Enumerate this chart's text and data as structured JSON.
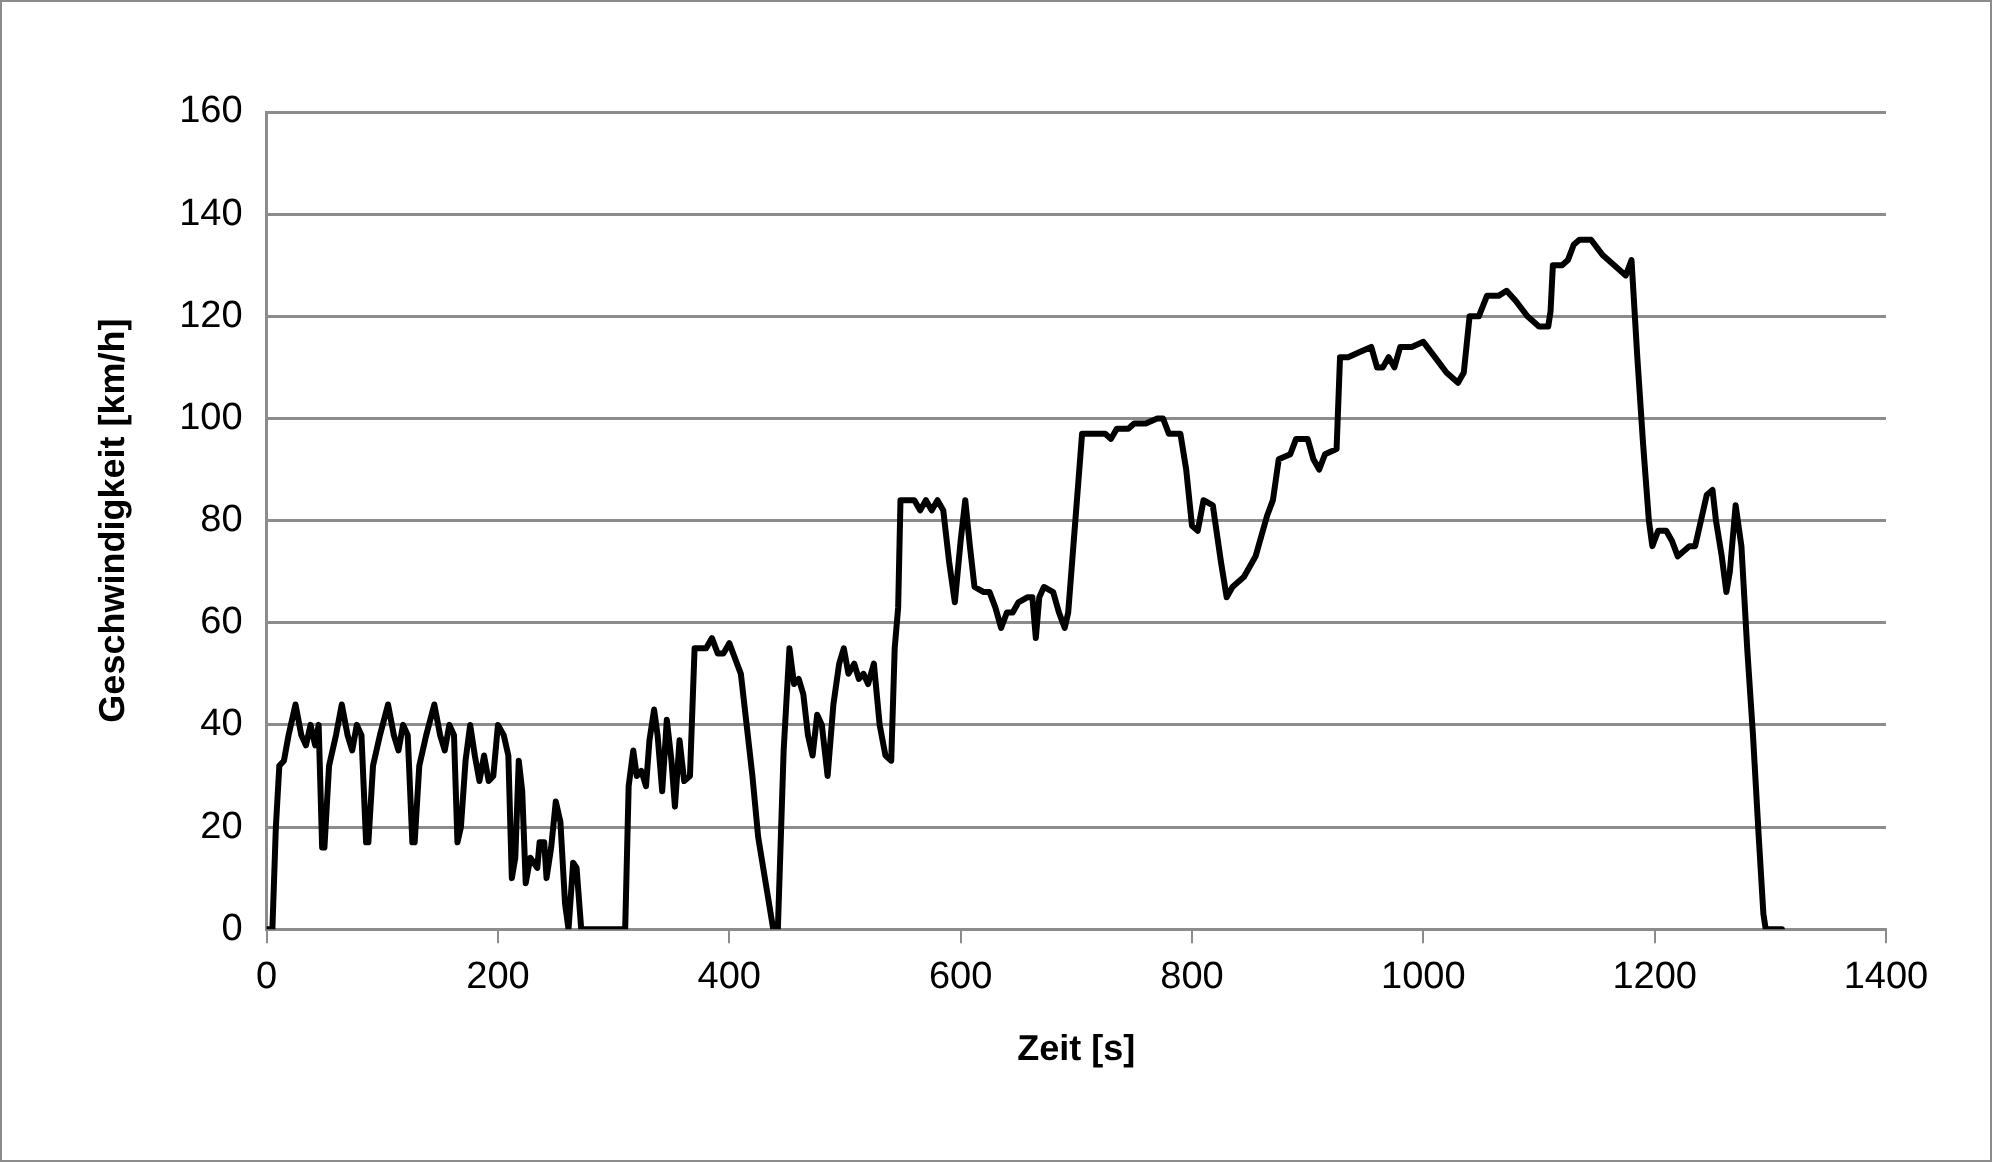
{
  "chart_data": {
    "type": "line",
    "xlabel": "Zeit [s]",
    "ylabel": "Geschwindigkeit [km/h]",
    "x": [
      0,
      5,
      8,
      11,
      15,
      19,
      25,
      30,
      34,
      38,
      42,
      45,
      48,
      50,
      54,
      60,
      65,
      70,
      74,
      78,
      82,
      86,
      88,
      92,
      98,
      105,
      110,
      114,
      118,
      122,
      126,
      128,
      132,
      138,
      145,
      150,
      154,
      158,
      162,
      165,
      168,
      172,
      176,
      180,
      184,
      188,
      192,
      196,
      200,
      205,
      209,
      212,
      215,
      218,
      221,
      224,
      228,
      234,
      236,
      240,
      242,
      246,
      250,
      254,
      258,
      261,
      265,
      268,
      272,
      310,
      313,
      317,
      320,
      324,
      328,
      331,
      335,
      338,
      342,
      346,
      350,
      353,
      357,
      361,
      366,
      370,
      375,
      380,
      385,
      390,
      395,
      400,
      405,
      410,
      415,
      420,
      425,
      438,
      442,
      447,
      452,
      456,
      460,
      464,
      468,
      472,
      476,
      480,
      485,
      490,
      495,
      499,
      503,
      508,
      512,
      516,
      520,
      525,
      530,
      535,
      540,
      543,
      546,
      548,
      555,
      560,
      565,
      570,
      575,
      580,
      585,
      590,
      595,
      600,
      604,
      608,
      612,
      620,
      625,
      630,
      635,
      640,
      645,
      650,
      658,
      662,
      665,
      668,
      672,
      680,
      685,
      690,
      693,
      705,
      715,
      725,
      730,
      735,
      745,
      750,
      760,
      770,
      775,
      780,
      790,
      795,
      800,
      805,
      810,
      818,
      825,
      830,
      835,
      845,
      855,
      865,
      870,
      875,
      885,
      890,
      900,
      905,
      910,
      915,
      925,
      928,
      935,
      945,
      955,
      960,
      965,
      970,
      975,
      980,
      990,
      1000,
      1010,
      1020,
      1030,
      1035,
      1040,
      1048,
      1055,
      1065,
      1072,
      1080,
      1090,
      1100,
      1108,
      1110,
      1112,
      1120,
      1125,
      1130,
      1135,
      1145,
      1155,
      1165,
      1175,
      1180,
      1185,
      1190,
      1195,
      1198,
      1203,
      1210,
      1215,
      1220,
      1225,
      1230,
      1235,
      1240,
      1245,
      1250,
      1253,
      1258,
      1262,
      1265,
      1270,
      1275,
      1280,
      1285,
      1290,
      1294,
      1296,
      1310
    ],
    "series": [
      {
        "color": "#000000",
        "values": [
          0,
          0,
          20,
          32,
          33,
          38,
          44,
          38,
          36,
          40,
          36,
          40,
          16,
          16,
          32,
          38,
          44,
          38,
          35,
          40,
          38,
          17,
          17,
          32,
          38,
          44,
          38,
          35,
          40,
          38,
          17,
          17,
          32,
          38,
          44,
          38,
          35,
          40,
          38,
          17,
          20,
          33,
          40,
          34,
          29,
          34,
          29,
          30,
          40,
          38,
          34,
          10,
          14,
          33,
          27,
          9,
          14,
          12,
          17,
          17,
          10,
          16,
          25,
          21,
          5,
          0,
          13,
          12,
          0,
          0,
          28,
          35,
          30,
          31,
          28,
          37,
          43,
          38,
          27,
          41,
          33,
          24,
          37,
          29,
          30,
          55,
          55,
          55,
          57,
          54,
          54,
          56,
          53,
          50,
          40,
          30,
          18,
          0,
          0,
          35,
          55,
          48,
          49,
          46,
          38,
          34,
          42,
          40,
          30,
          44,
          52,
          55,
          50,
          52,
          49,
          50,
          48,
          52,
          40,
          34,
          33,
          55,
          63,
          84,
          84,
          84,
          82,
          84,
          82,
          84,
          82,
          72,
          64,
          76,
          84,
          75,
          67,
          66,
          66,
          63,
          59,
          62,
          62,
          64,
          65,
          65,
          57,
          65,
          67,
          66,
          62,
          59,
          62,
          97,
          97,
          97,
          96,
          98,
          98,
          99,
          99,
          100,
          100,
          97,
          97,
          90,
          79,
          78,
          84,
          83,
          72,
          65,
          67,
          69,
          73,
          81,
          84,
          92,
          93,
          96,
          96,
          92,
          90,
          93,
          94,
          112,
          112,
          113,
          114,
          110,
          110,
          112,
          110,
          114,
          114,
          115,
          112,
          109,
          107,
          109,
          120,
          120,
          124,
          124,
          125,
          123,
          120,
          118,
          118,
          121,
          130,
          130,
          131,
          134,
          135,
          135,
          132,
          130,
          128,
          131,
          112,
          95,
          80,
          75,
          78,
          78,
          76,
          73,
          74,
          75,
          75,
          80,
          85,
          86,
          80,
          73,
          66,
          70,
          83,
          75,
          55,
          38,
          18,
          3,
          0,
          0
        ]
      }
    ],
    "xlim": [
      0,
      1400
    ],
    "xticks": [
      0,
      200,
      400,
      600,
      800,
      1000,
      1200,
      1400
    ],
    "ylim": [
      0,
      160
    ],
    "yticks": [
      0,
      20,
      40,
      60,
      80,
      100,
      120,
      140,
      160
    ],
    "grid": "y",
    "legend": false,
    "marker": "none",
    "line_style": "solid"
  }
}
